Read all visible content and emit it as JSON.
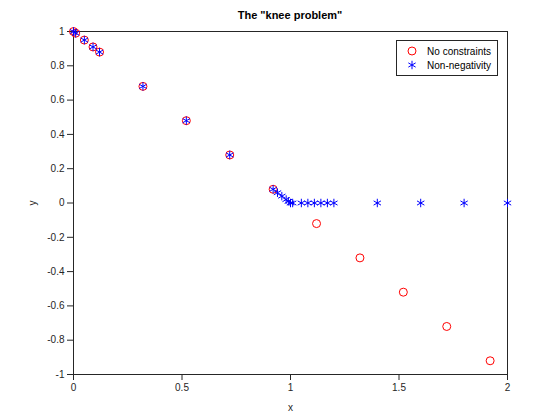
{
  "chart_data": {
    "type": "scatter",
    "title": "The \"knee problem\"",
    "x_label": "x",
    "y_label": "y",
    "xlim": [
      0,
      2
    ],
    "ylim": [
      -1,
      1
    ],
    "xticks": [
      0,
      0.5,
      1,
      1.5,
      2
    ],
    "yticks": [
      -1,
      -0.8,
      -0.6,
      -0.4,
      -0.2,
      0,
      0.2,
      0.4,
      0.6,
      0.8,
      1
    ],
    "grid": false,
    "legend": "northeast",
    "series": [
      {
        "name": "No constraints",
        "color": "#ff0000",
        "marker": "circle",
        "x": [
          0,
          0.01,
          0.05,
          0.09,
          0.12,
          0.32,
          0.52,
          0.72,
          0.92,
          1.12,
          1.32,
          1.52,
          1.72,
          1.92
        ],
        "values": [
          1,
          0.99,
          0.95,
          0.91,
          0.88,
          0.68,
          0.48,
          0.28,
          0.08,
          -0.12,
          -0.32,
          -0.52,
          -0.72,
          -0.92
        ]
      },
      {
        "name": "Non-negativity",
        "color": "#0000ff",
        "marker": "asterisk",
        "x": [
          0,
          0.01,
          0.05,
          0.09,
          0.12,
          0.32,
          0.52,
          0.72,
          0.92,
          0.94,
          0.96,
          0.98,
          0.99,
          1.0,
          1.01,
          1.05,
          1.08,
          1.11,
          1.14,
          1.17,
          1.2,
          1.4,
          1.6,
          1.8,
          2.0
        ],
        "values": [
          1,
          0.99,
          0.95,
          0.91,
          0.88,
          0.68,
          0.48,
          0.28,
          0.08,
          0.06,
          0.04,
          0.02,
          0.01,
          0,
          0,
          0,
          0,
          0,
          0,
          0,
          0,
          0,
          0,
          0,
          0
        ]
      }
    ]
  }
}
